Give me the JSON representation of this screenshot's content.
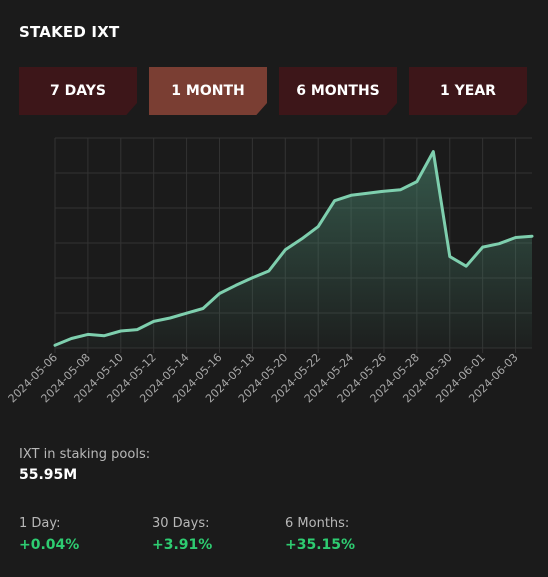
{
  "header": {
    "title": "STAKED IXT"
  },
  "tabs": [
    {
      "label": "7 DAYS",
      "active": false
    },
    {
      "label": "1 MONTH",
      "active": true
    },
    {
      "label": "6 MONTHS",
      "active": false
    },
    {
      "label": "1 YEAR",
      "active": false
    }
  ],
  "chart_data": {
    "type": "area",
    "x": [
      "2024-05-06",
      "2024-05-07",
      "2024-05-08",
      "2024-05-09",
      "2024-05-10",
      "2024-05-11",
      "2024-05-12",
      "2024-05-13",
      "2024-05-14",
      "2024-05-15",
      "2024-05-16",
      "2024-05-17",
      "2024-05-18",
      "2024-05-19",
      "2024-05-20",
      "2024-05-21",
      "2024-05-22",
      "2024-05-23",
      "2024-05-24",
      "2024-05-25",
      "2024-05-26",
      "2024-05-27",
      "2024-05-28",
      "2024-05-29",
      "2024-05-30",
      "2024-05-31",
      "2024-06-01",
      "2024-06-02",
      "2024-06-03",
      "2024-06-04"
    ],
    "x_ticks": [
      "2024-05-06",
      "2024-05-08",
      "2024-05-10",
      "2024-05-12",
      "2024-05-14",
      "2024-05-16",
      "2024-05-18",
      "2024-05-20",
      "2024-05-22",
      "2024-05-24",
      "2024-05-26",
      "2024-05-28",
      "2024-05-30",
      "2024-06-01",
      "2024-06-03"
    ],
    "values": [
      0.0,
      0.05,
      0.08,
      0.07,
      0.105,
      0.115,
      0.175,
      0.2,
      0.235,
      0.27,
      0.38,
      0.44,
      0.495,
      0.545,
      0.7,
      0.78,
      0.87,
      1.06,
      1.1,
      1.115,
      1.13,
      1.14,
      1.2,
      1.42,
      0.65,
      0.58,
      0.72,
      0.745,
      0.79,
      0.8
    ],
    "ylim": [
      -0.02,
      1.52
    ],
    "y_ticks_labeled": false,
    "grid": true,
    "line_color": "#7ecfae",
    "fill_color": "#4b8a72"
  },
  "stats": {
    "pool_label": "IXT in staking pools:",
    "pool_value": "55.95M",
    "items": [
      {
        "label": "1 Day:",
        "value": "+0.04%"
      },
      {
        "label": "30 Days:",
        "value": "+3.91%"
      },
      {
        "label": "6 Months:",
        "value": "+35.15%"
      }
    ],
    "positive_color": "#2ecc71"
  }
}
